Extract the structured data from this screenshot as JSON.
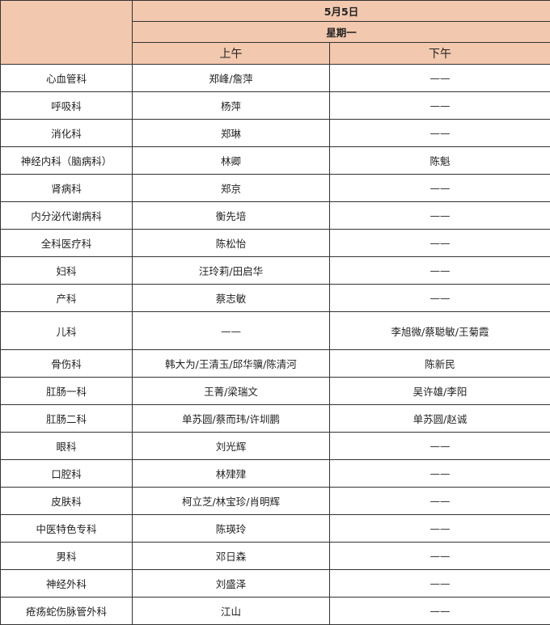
{
  "header": {
    "date": "5月5日",
    "weekday": "星期一",
    "morning": "上午",
    "afternoon": "下午"
  },
  "colors": {
    "header_bg": "#f2c8ae",
    "border": "#333333"
  },
  "rows": [
    {
      "dept": "心血管科",
      "am": "郑峰/詹萍",
      "pm": "——"
    },
    {
      "dept": "呼吸科",
      "am": "杨萍",
      "pm": "——"
    },
    {
      "dept": "消化科",
      "am": "郑琳",
      "pm": "——"
    },
    {
      "dept": "神经内科（脑病科）",
      "am": "林卿",
      "pm": "陈魁"
    },
    {
      "dept": "肾病科",
      "am": "郑京",
      "pm": "——"
    },
    {
      "dept": "内分泌代谢病科",
      "am": "衡先培",
      "pm": "——"
    },
    {
      "dept": "全科医疗科",
      "am": "陈松怡",
      "pm": "——"
    },
    {
      "dept": "妇科",
      "am": "汪玲莉/田启华",
      "pm": "——"
    },
    {
      "dept": "产科",
      "am": "蔡志敏",
      "pm": "——"
    },
    {
      "dept": "儿科",
      "am": "——",
      "pm": "李旭微/蔡聪敏/王菊霞"
    },
    {
      "dept": "骨伤科",
      "am": "韩大为/王清玉/邱华骥/陈清河",
      "pm": "陈新民"
    },
    {
      "dept": "肛肠一科",
      "am": "王菁/梁瑞文",
      "pm": "吴许雄/李阳"
    },
    {
      "dept": "肛肠二科",
      "am": "单苏圆/蔡而玮/许圳鹏",
      "pm": "单苏圆/赵诚"
    },
    {
      "dept": "眼科",
      "am": "刘光辉",
      "pm": "——"
    },
    {
      "dept": "口腔科",
      "am": "林肂肂",
      "pm": "——"
    },
    {
      "dept": "皮肤科",
      "am": "柯立芝/林宝珍/肖明辉",
      "pm": "——"
    },
    {
      "dept": "中医特色专科",
      "am": "陈瑛玲",
      "pm": "——"
    },
    {
      "dept": "男科",
      "am": "邓日森",
      "pm": "——"
    },
    {
      "dept": "神经外科",
      "am": "刘盛泽",
      "pm": "——"
    },
    {
      "dept": "疮疡蛇伤脉管外科",
      "am": "江山",
      "pm": "——"
    }
  ]
}
